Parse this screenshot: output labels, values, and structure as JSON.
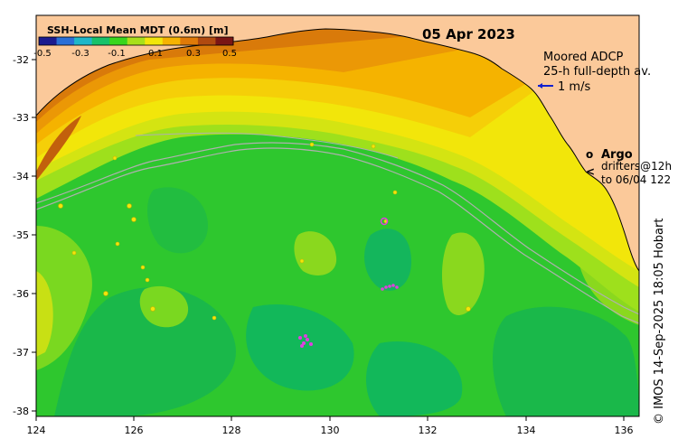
{
  "title": "SSH-Local Mean MDT (0.6m) [m]",
  "date": "05 Apr 2023",
  "colorbar": {
    "ticks": [
      "-0.5",
      "-0.3",
      "-0.1",
      "0.1",
      "0.3",
      "0.5"
    ],
    "colors": [
      "#1b1b8f",
      "#2a6fd6",
      "#1fb7c9",
      "#17c26a",
      "#38d61c",
      "#a8e01a",
      "#f2e60a",
      "#f5b300",
      "#e07a08",
      "#b04a10",
      "#7a1515"
    ]
  },
  "legend": {
    "adcp_title": "Moored ADCP",
    "adcp_sub": "25-h full-depth av.",
    "adcp_scale": "1 m/s",
    "argo_symbol": "o",
    "argo_label": "Argo",
    "drifter_symbol": "<",
    "drifter_label": "drifters@12h",
    "drifter_sub": "to 06/04 122"
  },
  "axes": {
    "x_ticks": [
      "124",
      "126",
      "128",
      "130",
      "132",
      "134",
      "136"
    ],
    "y_ticks": [
      "-32",
      "-33",
      "-34",
      "-35",
      "-36",
      "-37",
      "-38"
    ]
  },
  "credit": "© IMOS 14-Sep-2025 18:05 Hobart",
  "colors": {
    "land": "#fbc99a",
    "ocean_base": "#2ec72e",
    "contour_line": "#b0b0b0",
    "marker": "#e040e0"
  }
}
